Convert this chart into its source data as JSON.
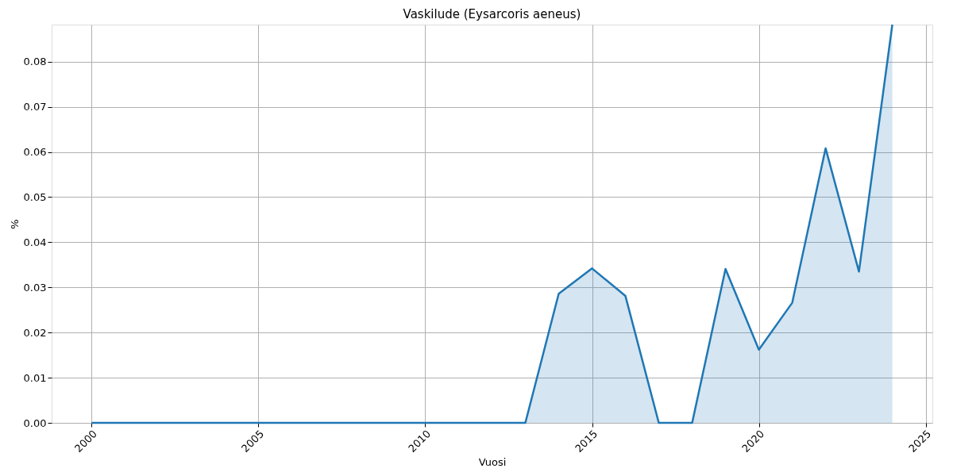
{
  "chart_data": {
    "type": "area",
    "title": "Vaskilude (Eysarcoris aeneus)",
    "xlabel": "Vuosi",
    "ylabel": "%",
    "x": [
      2000,
      2001,
      2002,
      2003,
      2004,
      2005,
      2006,
      2007,
      2008,
      2009,
      2010,
      2011,
      2012,
      2013,
      2014,
      2015,
      2016,
      2017,
      2018,
      2019,
      2020,
      2021,
      2022,
      2023,
      2024
    ],
    "series": [
      {
        "color": "#1f77b4",
        "values": [
          0,
          0,
          0,
          0,
          0,
          0,
          0,
          0,
          0,
          0,
          0,
          0,
          0,
          0,
          0.0286,
          0.0342,
          0.0281,
          0,
          0,
          0.0341,
          0.0162,
          0.0266,
          0.0608,
          0.0335,
          0.0882
        ]
      }
    ],
    "xlim": [
      1998.8,
      2025.2
    ],
    "xticks": [
      2000,
      2005,
      2010,
      2015,
      2020,
      2025
    ],
    "ylim": [
      0,
      0.0882
    ],
    "yticks": [
      {
        "value": 0,
        "label": "0.00"
      },
      {
        "value": 0.01,
        "label": "0.01"
      },
      {
        "value": 0.02,
        "label": "0.02"
      },
      {
        "value": 0.03,
        "label": "0.03"
      },
      {
        "value": 0.04,
        "label": "0.04"
      },
      {
        "value": 0.05,
        "label": "0.05"
      },
      {
        "value": 0.06,
        "label": "0.06"
      },
      {
        "value": 0.07,
        "label": "0.07"
      },
      {
        "value": 0.08,
        "label": "0.08"
      }
    ],
    "grid": true,
    "line_style": "solid"
  }
}
